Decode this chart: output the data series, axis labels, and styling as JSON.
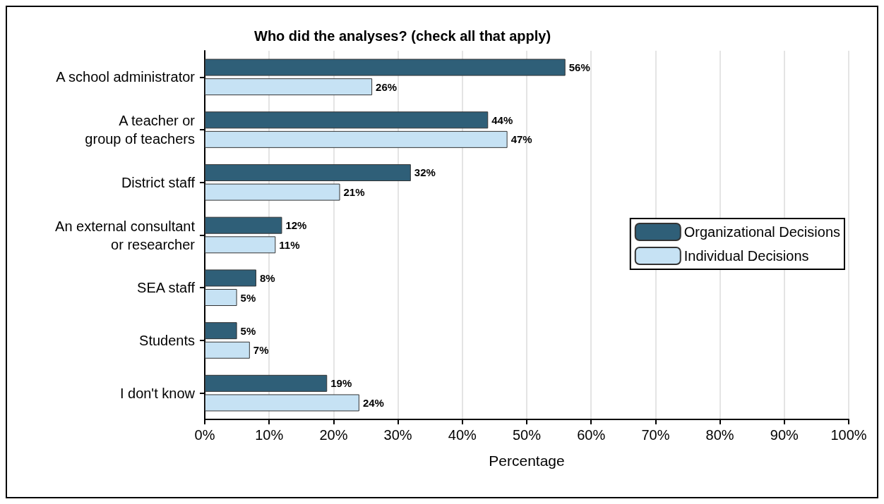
{
  "chart_data": {
    "type": "bar",
    "orientation": "horizontal",
    "title": "Who did the analyses? (check all that apply)",
    "xlabel": "Percentage",
    "categories": [
      "A school administrator",
      "A teacher or\ngroup of teachers",
      "District staff",
      "An external consultant\nor researcher",
      "SEA staff",
      "Students",
      "I don't know"
    ],
    "series": [
      {
        "name": "Organizational Decisions",
        "color": "#2f5f78",
        "values": [
          56,
          44,
          32,
          12,
          8,
          5,
          19
        ],
        "value_labels": [
          "56%",
          "44%",
          "32%",
          "12%",
          "8%",
          "5%",
          "19%"
        ]
      },
      {
        "name": "Individual Decisions",
        "color": "#c6e2f4",
        "values": [
          26,
          47,
          21,
          11,
          5,
          7,
          24
        ],
        "value_labels": [
          "26%",
          "47%",
          "21%",
          "11%",
          "5%",
          "7%",
          "24%"
        ]
      }
    ],
    "xlim": [
      0,
      100
    ],
    "xticks": [
      {
        "value": 0,
        "label": "0%"
      },
      {
        "value": 10,
        "label": "10%"
      },
      {
        "value": 20,
        "label": "20%"
      },
      {
        "value": 30,
        "label": "30%"
      },
      {
        "value": 40,
        "label": "40%"
      },
      {
        "value": 50,
        "label": "50%"
      },
      {
        "value": 60,
        "label": "60%"
      },
      {
        "value": 70,
        "label": "70%"
      },
      {
        "value": 80,
        "label": "80%"
      },
      {
        "value": 90,
        "label": "90%"
      },
      {
        "value": 100,
        "label": "100%"
      }
    ],
    "grid": "x",
    "legend": "right"
  }
}
